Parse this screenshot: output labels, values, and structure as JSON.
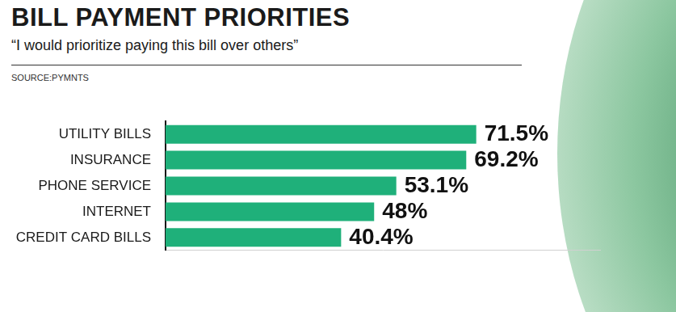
{
  "chart_data": {
    "type": "bar",
    "title": "BILL PAYMENT PRIORITIES",
    "subtitle": "“I would prioritize paying this bill over others”",
    "source": "SOURCE:PYMNTS",
    "orientation": "horizontal",
    "categories": [
      "UTILITY BILLS",
      "INSURANCE",
      "PHONE SERVICE",
      "INTERNET",
      "CREDIT CARD BILLS"
    ],
    "values": [
      71.5,
      69.2,
      53.1,
      48,
      40.4
    ],
    "value_labels": [
      "71.5%",
      "69.2%",
      "53.1%",
      "48%",
      "40.4%"
    ],
    "color": "#1fb07a",
    "xlim": [
      0,
      100
    ],
    "grid": false,
    "data_labels": true,
    "tick_labels": "y"
  }
}
